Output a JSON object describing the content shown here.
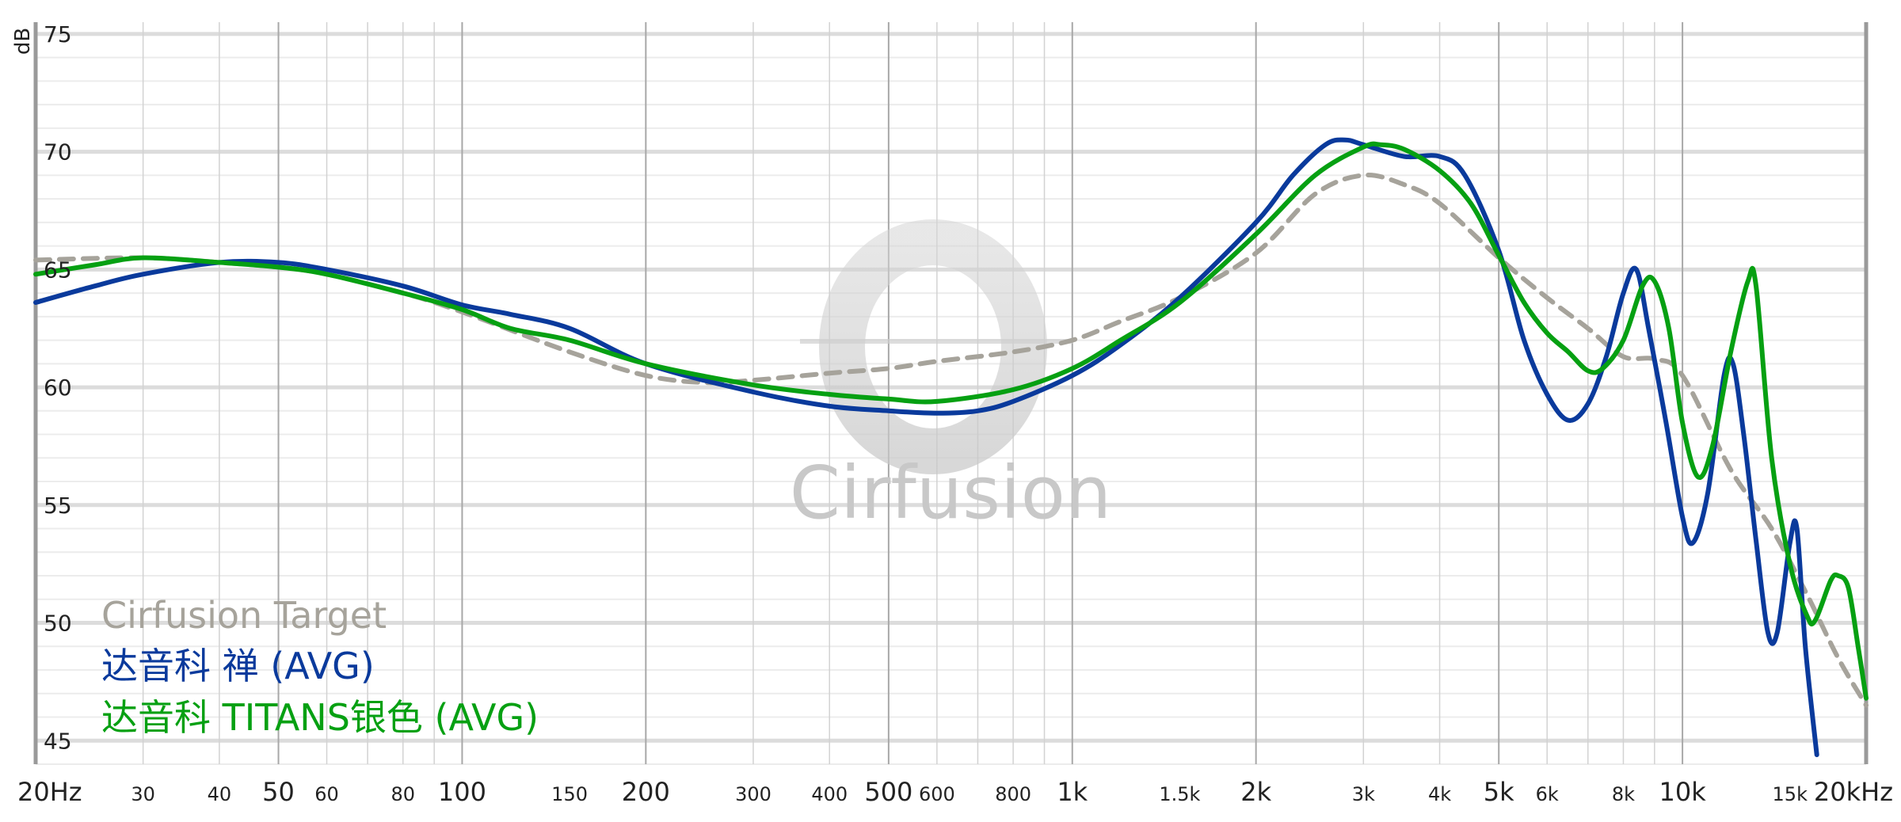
{
  "chart_data": {
    "type": "line",
    "title": "",
    "xlabel": "",
    "ylabel": "dB",
    "x_scale": "log",
    "xlim": [
      20,
      20000
    ],
    "ylim": [
      44,
      75.5
    ],
    "grid": true,
    "legend_position": "bottom-left",
    "watermark": "Cirfusion",
    "y_ticks": [
      {
        "value": 75,
        "label": "75"
      },
      {
        "value": 70,
        "label": "70"
      },
      {
        "value": 65,
        "label": "65"
      },
      {
        "value": 60,
        "label": "60"
      },
      {
        "value": 55,
        "label": "55"
      },
      {
        "value": 50,
        "label": "50"
      },
      {
        "value": 45,
        "label": "45"
      }
    ],
    "x_ticks": [
      {
        "value": 20,
        "label": "20Hz",
        "major": true
      },
      {
        "value": 30,
        "label": "30",
        "major": false
      },
      {
        "value": 40,
        "label": "40",
        "major": false
      },
      {
        "value": 50,
        "label": "50",
        "major": true
      },
      {
        "value": 60,
        "label": "60",
        "major": false
      },
      {
        "value": 80,
        "label": "80",
        "major": false
      },
      {
        "value": 100,
        "label": "100",
        "major": true
      },
      {
        "value": 150,
        "label": "150",
        "major": false
      },
      {
        "value": 200,
        "label": "200",
        "major": true
      },
      {
        "value": 300,
        "label": "300",
        "major": false
      },
      {
        "value": 400,
        "label": "400",
        "major": false
      },
      {
        "value": 500,
        "label": "500",
        "major": true
      },
      {
        "value": 600,
        "label": "600",
        "major": false
      },
      {
        "value": 800,
        "label": "800",
        "major": false
      },
      {
        "value": 1000,
        "label": "1k",
        "major": true
      },
      {
        "value": 1500,
        "label": "1.5k",
        "major": false
      },
      {
        "value": 2000,
        "label": "2k",
        "major": true
      },
      {
        "value": 3000,
        "label": "3k",
        "major": false
      },
      {
        "value": 4000,
        "label": "4k",
        "major": false
      },
      {
        "value": 5000,
        "label": "5k",
        "major": true
      },
      {
        "value": 6000,
        "label": "6k",
        "major": false
      },
      {
        "value": 8000,
        "label": "8k",
        "major": false
      },
      {
        "value": 10000,
        "label": "10k",
        "major": true
      },
      {
        "value": 15000,
        "label": "15k",
        "major": false
      },
      {
        "value": 20000,
        "label": "20kHz",
        "major": true
      }
    ],
    "series": [
      {
        "name": "Cirfusion Target",
        "color": "#a6a39b",
        "dashed": true,
        "points": [
          [
            20,
            65.4
          ],
          [
            30,
            65.5
          ],
          [
            40,
            65.3
          ],
          [
            50,
            65.1
          ],
          [
            60,
            64.8
          ],
          [
            80,
            64.0
          ],
          [
            100,
            63.2
          ],
          [
            150,
            61.5
          ],
          [
            200,
            60.5
          ],
          [
            250,
            60.2
          ],
          [
            300,
            60.3
          ],
          [
            400,
            60.6
          ],
          [
            500,
            60.8
          ],
          [
            600,
            61.1
          ],
          [
            800,
            61.5
          ],
          [
            1000,
            62.0
          ],
          [
            1200,
            62.8
          ],
          [
            1500,
            63.8
          ],
          [
            2000,
            65.7
          ],
          [
            2500,
            68.2
          ],
          [
            3000,
            69.0
          ],
          [
            3500,
            68.6
          ],
          [
            4000,
            67.8
          ],
          [
            5000,
            65.5
          ],
          [
            6000,
            63.8
          ],
          [
            7000,
            62.5
          ],
          [
            8000,
            61.3
          ],
          [
            9000,
            61.2
          ],
          [
            10000,
            60.5
          ],
          [
            12000,
            56.5
          ],
          [
            14000,
            54.0
          ],
          [
            16000,
            51.2
          ],
          [
            18000,
            48.5
          ],
          [
            20000,
            46.5
          ]
        ]
      },
      {
        "name": "达音科 禅 (AVG)",
        "color": "#0a3a9c",
        "dashed": false,
        "points": [
          [
            20,
            63.6
          ],
          [
            25,
            64.3
          ],
          [
            30,
            64.8
          ],
          [
            40,
            65.3
          ],
          [
            50,
            65.3
          ],
          [
            60,
            65.0
          ],
          [
            80,
            64.3
          ],
          [
            100,
            63.5
          ],
          [
            120,
            63.1
          ],
          [
            150,
            62.5
          ],
          [
            200,
            61.0
          ],
          [
            300,
            59.8
          ],
          [
            400,
            59.2
          ],
          [
            500,
            59.0
          ],
          [
            600,
            58.9
          ],
          [
            700,
            59.0
          ],
          [
            800,
            59.4
          ],
          [
            1000,
            60.5
          ],
          [
            1200,
            61.8
          ],
          [
            1500,
            63.8
          ],
          [
            2000,
            67.0
          ],
          [
            2300,
            69.0
          ],
          [
            2600,
            70.3
          ],
          [
            2800,
            70.5
          ],
          [
            3000,
            70.3
          ],
          [
            3500,
            69.8
          ],
          [
            4000,
            69.8
          ],
          [
            4400,
            69.0
          ],
          [
            5000,
            65.8
          ],
          [
            5500,
            62.0
          ],
          [
            6000,
            59.7
          ],
          [
            6500,
            58.6
          ],
          [
            7000,
            59.3
          ],
          [
            7500,
            61.3
          ],
          [
            8000,
            64.0
          ],
          [
            8400,
            65.0
          ],
          [
            8800,
            62.5
          ],
          [
            9400,
            58.5
          ],
          [
            10000,
            54.5
          ],
          [
            10400,
            53.4
          ],
          [
            11000,
            55.5
          ],
          [
            11700,
            60.5
          ],
          [
            12100,
            61.0
          ],
          [
            12600,
            58.0
          ],
          [
            13200,
            53.5
          ],
          [
            13800,
            49.6
          ],
          [
            14300,
            49.6
          ],
          [
            15000,
            53.4
          ],
          [
            15400,
            54.0
          ],
          [
            15900,
            49.0
          ],
          [
            16600,
            44.4
          ]
        ]
      },
      {
        "name": "达音科 TITANS银色 (AVG)",
        "color": "#06a012",
        "dashed": false,
        "points": [
          [
            20,
            64.8
          ],
          [
            25,
            65.2
          ],
          [
            30,
            65.5
          ],
          [
            40,
            65.3
          ],
          [
            50,
            65.1
          ],
          [
            60,
            64.8
          ],
          [
            80,
            64.0
          ],
          [
            100,
            63.3
          ],
          [
            120,
            62.5
          ],
          [
            150,
            62.0
          ],
          [
            200,
            61.0
          ],
          [
            300,
            60.1
          ],
          [
            400,
            59.7
          ],
          [
            500,
            59.5
          ],
          [
            600,
            59.4
          ],
          [
            800,
            59.9
          ],
          [
            1000,
            60.8
          ],
          [
            1200,
            62.0
          ],
          [
            1500,
            63.6
          ],
          [
            2000,
            66.5
          ],
          [
            2500,
            69.0
          ],
          [
            3000,
            70.2
          ],
          [
            3200,
            70.3
          ],
          [
            3500,
            70.1
          ],
          [
            4000,
            69.2
          ],
          [
            4500,
            67.8
          ],
          [
            5000,
            65.6
          ],
          [
            5500,
            63.6
          ],
          [
            6000,
            62.3
          ],
          [
            6500,
            61.5
          ],
          [
            7000,
            60.7
          ],
          [
            7400,
            60.8
          ],
          [
            8000,
            62.0
          ],
          [
            8600,
            64.3
          ],
          [
            9000,
            64.5
          ],
          [
            9500,
            62.5
          ],
          [
            10000,
            58.5
          ],
          [
            10600,
            56.2
          ],
          [
            11200,
            57.5
          ],
          [
            12000,
            61.5
          ],
          [
            12800,
            64.5
          ],
          [
            13200,
            64.3
          ],
          [
            14000,
            57.0
          ],
          [
            15000,
            52.5
          ],
          [
            16000,
            50.3
          ],
          [
            16500,
            50.1
          ],
          [
            17500,
            51.8
          ],
          [
            18000,
            52.0
          ],
          [
            18700,
            51.5
          ],
          [
            19400,
            49.0
          ],
          [
            20000,
            46.8
          ]
        ]
      }
    ]
  }
}
